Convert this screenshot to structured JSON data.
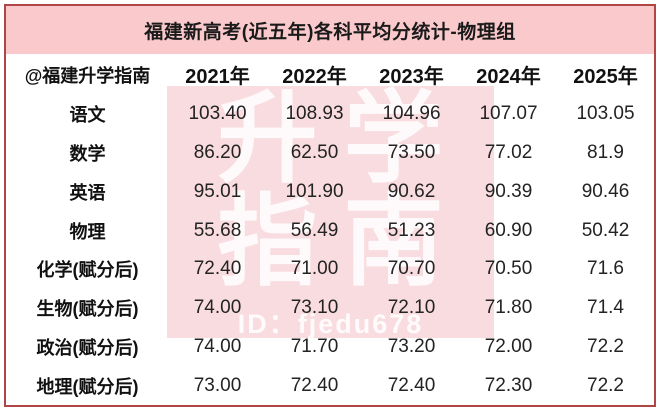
{
  "title": "福建新高考(近五年)各科平均分统计-物理组",
  "table": {
    "corner_label": "@福建升学指南",
    "year_headers": [
      "2021年",
      "2022年",
      "2023年",
      "2024年",
      "2025年"
    ],
    "rows": [
      {
        "subject": "语文",
        "values": [
          "103.40",
          "108.93",
          "104.96",
          "107.07",
          "103.05"
        ]
      },
      {
        "subject": "数学",
        "values": [
          "86.20",
          "62.50",
          "73.50",
          "77.02",
          "81.9"
        ]
      },
      {
        "subject": "英语",
        "values": [
          "95.01",
          "101.90",
          "90.62",
          "90.39",
          "90.46"
        ]
      },
      {
        "subject": "物理",
        "values": [
          "55.68",
          "56.49",
          "51.23",
          "60.90",
          "50.42"
        ]
      },
      {
        "subject": "化学(赋分后)",
        "values": [
          "72.40",
          "71.00",
          "70.70",
          "70.50",
          "71.6"
        ]
      },
      {
        "subject": "生物(赋分后)",
        "values": [
          "74.00",
          "73.10",
          "72.10",
          "71.80",
          "71.4"
        ]
      },
      {
        "subject": "政治(赋分后)",
        "values": [
          "74.00",
          "71.70",
          "73.20",
          "72.00",
          "72.2"
        ]
      },
      {
        "subject": "地理(赋分后)",
        "values": [
          "73.00",
          "72.40",
          "72.40",
          "72.30",
          "72.2"
        ]
      }
    ]
  },
  "watermark": {
    "line1": "升学",
    "line2": "指南",
    "id_text": "ID：fjedu678"
  },
  "colors": {
    "title_band": "#f9c9cb",
    "border": "#b04545",
    "watermark_bg": "#f9dce0",
    "watermark_text": "#ffffff",
    "text": "#1a1a1a"
  },
  "chart_data": {
    "type": "table",
    "title": "福建新高考(近五年)各科平均分统计-物理组",
    "categories": [
      "2021年",
      "2022年",
      "2023年",
      "2024年",
      "2025年"
    ],
    "series": [
      {
        "name": "语文",
        "values": [
          103.4,
          108.93,
          104.96,
          107.07,
          103.05
        ]
      },
      {
        "name": "数学",
        "values": [
          86.2,
          62.5,
          73.5,
          77.02,
          81.9
        ]
      },
      {
        "name": "英语",
        "values": [
          95.01,
          101.9,
          90.62,
          90.39,
          90.46
        ]
      },
      {
        "name": "物理",
        "values": [
          55.68,
          56.49,
          51.23,
          60.9,
          50.42
        ]
      },
      {
        "name": "化学(赋分后)",
        "values": [
          72.4,
          71.0,
          70.7,
          70.5,
          71.6
        ]
      },
      {
        "name": "生物(赋分后)",
        "values": [
          74.0,
          73.1,
          72.1,
          71.8,
          71.4
        ]
      },
      {
        "name": "政治(赋分后)",
        "values": [
          74.0,
          71.7,
          73.2,
          72.0,
          72.2
        ]
      },
      {
        "name": "地理(赋分后)",
        "values": [
          73.0,
          72.4,
          72.4,
          72.3,
          72.2
        ]
      }
    ],
    "layout": {
      "header_row": true,
      "first_column_is_subject": true,
      "gridlines": false
    }
  }
}
